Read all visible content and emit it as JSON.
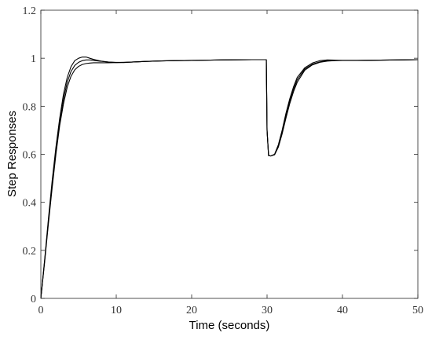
{
  "chart_data": {
    "type": "line",
    "title": "",
    "xlabel": "Time (seconds)",
    "ylabel": "Step Responses",
    "xlim": [
      0,
      50
    ],
    "ylim": [
      0,
      1.2
    ],
    "xticks": [
      0,
      10,
      20,
      30,
      40,
      50
    ],
    "yticks": [
      0,
      0.2,
      0.4,
      0.6,
      0.8,
      1,
      1.2
    ],
    "xtick_labels": [
      "0",
      "10",
      "20",
      "30",
      "40",
      "50"
    ],
    "ytick_labels": [
      "0",
      "0.2",
      "0.4",
      "0.6",
      "0.8",
      "1",
      "1.2"
    ],
    "grid": false,
    "legend": "none",
    "line_color": "#000000",
    "series": [
      {
        "x": [
          0,
          0.5,
          1,
          1.5,
          2,
          2.5,
          3,
          3.5,
          4,
          4.5,
          5,
          5.5,
          6,
          6.5,
          7,
          8,
          9,
          10,
          11,
          12,
          14,
          16,
          18,
          20,
          24,
          28,
          29.9,
          30.0,
          30.2,
          30.5,
          31,
          31.5,
          32,
          32.5,
          33,
          33.5,
          34,
          35,
          36,
          37,
          38,
          39,
          40,
          42,
          45,
          50
        ],
        "y": [
          0,
          0.16,
          0.33,
          0.49,
          0.63,
          0.75,
          0.85,
          0.92,
          0.965,
          0.99,
          1.0,
          1.005,
          1.005,
          1.0,
          0.995,
          0.988,
          0.984,
          0.982,
          0.982,
          0.984,
          0.987,
          0.989,
          0.99,
          0.991,
          0.993,
          0.994,
          0.994,
          0.7,
          0.595,
          0.593,
          0.6,
          0.64,
          0.7,
          0.77,
          0.83,
          0.88,
          0.92,
          0.96,
          0.98,
          0.99,
          0.993,
          0.992,
          0.991,
          0.991,
          0.992,
          0.994
        ]
      },
      {
        "x": [
          0,
          0.5,
          1,
          1.5,
          2,
          2.5,
          3,
          3.5,
          4,
          4.5,
          5,
          5.5,
          6,
          6.5,
          7,
          8,
          9,
          10,
          11,
          12,
          14,
          16,
          18,
          20,
          24,
          28,
          29.9,
          30.0,
          30.2,
          30.5,
          31,
          31.5,
          32,
          32.5,
          33,
          33.5,
          34,
          35,
          36,
          37,
          38,
          39,
          40,
          42,
          45,
          50
        ],
        "y": [
          0,
          0.155,
          0.32,
          0.47,
          0.61,
          0.73,
          0.83,
          0.9,
          0.945,
          0.97,
          0.983,
          0.99,
          0.993,
          0.993,
          0.991,
          0.987,
          0.984,
          0.983,
          0.983,
          0.984,
          0.987,
          0.989,
          0.99,
          0.991,
          0.993,
          0.994,
          0.994,
          0.7,
          0.595,
          0.593,
          0.6,
          0.635,
          0.69,
          0.76,
          0.82,
          0.87,
          0.91,
          0.955,
          0.975,
          0.985,
          0.99,
          0.991,
          0.991,
          0.991,
          0.992,
          0.994
        ]
      },
      {
        "x": [
          0,
          0.5,
          1,
          1.5,
          2,
          2.5,
          3,
          3.5,
          4,
          4.5,
          5,
          5.5,
          6,
          6.5,
          7,
          8,
          9,
          10,
          11,
          12,
          14,
          16,
          18,
          20,
          24,
          28,
          29.9,
          30.0,
          30.2,
          30.5,
          31,
          31.5,
          32,
          32.5,
          33,
          33.5,
          34,
          35,
          36,
          37,
          38,
          39,
          40,
          42,
          45,
          50
        ],
        "y": [
          0,
          0.15,
          0.31,
          0.46,
          0.6,
          0.72,
          0.81,
          0.88,
          0.925,
          0.952,
          0.966,
          0.974,
          0.978,
          0.98,
          0.981,
          0.981,
          0.981,
          0.982,
          0.983,
          0.984,
          0.987,
          0.989,
          0.99,
          0.991,
          0.993,
          0.994,
          0.994,
          0.7,
          0.595,
          0.593,
          0.598,
          0.63,
          0.685,
          0.75,
          0.81,
          0.86,
          0.9,
          0.95,
          0.972,
          0.983,
          0.988,
          0.99,
          0.991,
          0.991,
          0.992,
          0.994
        ]
      }
    ]
  }
}
